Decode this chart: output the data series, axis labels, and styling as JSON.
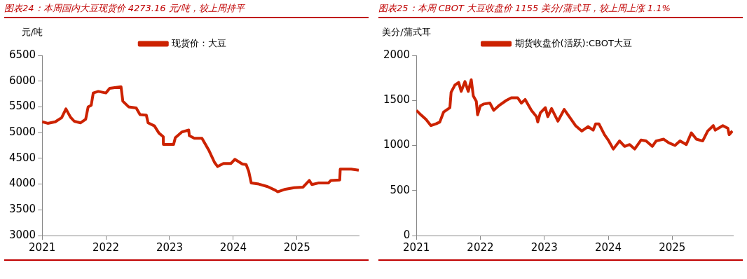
{
  "chart_data": [
    {
      "type": "line",
      "title": "图表24：本周国内大豆现货价 4273.16 元/吨，较上周持平",
      "ylabel": "元/吨",
      "legend": "top",
      "grid": false,
      "xlim": [
        2021,
        2025.97
      ],
      "xticks": [
        2021,
        2022,
        2023,
        2024,
        2025
      ],
      "ylim": [
        3000,
        6500
      ],
      "yticks": [
        3000,
        3500,
        4000,
        4500,
        5000,
        5500,
        6000,
        6500
      ],
      "series": [
        {
          "name": "现货价：大豆",
          "color": "#cc2200",
          "x": [
            2021.0,
            2021.087,
            2021.206,
            2021.306,
            2021.373,
            2021.444,
            2021.504,
            2021.603,
            2021.683,
            2021.722,
            2021.77,
            2021.802,
            2021.881,
            2022.0,
            2022.06,
            2022.238,
            2022.266,
            2022.357,
            2022.476,
            2022.536,
            2022.635,
            2022.663,
            2022.762,
            2022.833,
            2022.901,
            2022.903,
            2023.063,
            2023.09,
            2023.19,
            2023.3,
            2023.31,
            2023.389,
            2023.508,
            2023.619,
            2023.706,
            2023.754,
            2023.845,
            2023.964,
            2024.024,
            2024.143,
            2024.202,
            2024.242,
            2024.282,
            2024.401,
            2024.54,
            2024.659,
            2024.698,
            2024.817,
            2024.956,
            2025.095,
            2025.155,
            2025.194,
            2025.234,
            2025.333,
            2025.492,
            2025.532,
            2025.671,
            2025.679,
            2025.77,
            2025.85,
            2025.97
          ],
          "values": [
            5210,
            5180,
            5210,
            5290,
            5460,
            5300,
            5220,
            5190,
            5260,
            5500,
            5530,
            5770,
            5800,
            5770,
            5860,
            5890,
            5610,
            5500,
            5480,
            5350,
            5340,
            5190,
            5130,
            4990,
            4920,
            4770,
            4770,
            4900,
            5010,
            5050,
            4940,
            4890,
            4890,
            4650,
            4420,
            4340,
            4400,
            4400,
            4480,
            4390,
            4380,
            4250,
            4020,
            4000,
            3950,
            3880,
            3850,
            3900,
            3930,
            3940,
            4020,
            4070,
            3990,
            4020,
            4020,
            4070,
            4080,
            4290,
            4290,
            4290,
            4270
          ]
        }
      ]
    },
    {
      "type": "line",
      "title": "图表25：本周 CBOT 大豆收盘价 1155 美分/蒲式耳，较上周上涨 1.1%",
      "ylabel": "美分/蒲式耳",
      "legend": "top",
      "grid": false,
      "xlim": [
        2021,
        2025.95
      ],
      "xticks": [
        2021,
        2022,
        2023,
        2024,
        2025
      ],
      "ylim": [
        0,
        2000
      ],
      "yticks": [
        0,
        500,
        1000,
        1500,
        2000
      ],
      "series": [
        {
          "name": "期货收盘价(活跃):CBOT大豆",
          "color": "#cc2200",
          "x": [
            2021.0,
            2021.071,
            2021.15,
            2021.228,
            2021.307,
            2021.366,
            2021.425,
            2021.524,
            2021.543,
            2021.602,
            2021.661,
            2021.701,
            2021.76,
            2021.811,
            2021.858,
            2021.89,
            2021.937,
            2021.957,
            2022.0,
            2022.051,
            2022.15,
            2022.209,
            2022.287,
            2022.406,
            2022.484,
            2022.583,
            2022.642,
            2022.701,
            2022.799,
            2022.878,
            2022.898,
            2022.937,
            2023.016,
            2023.055,
            2023.114,
            2023.213,
            2023.311,
            2023.39,
            2023.488,
            2023.587,
            2023.685,
            2023.764,
            2023.803,
            2023.854,
            2023.941,
            2024.0,
            2024.079,
            2024.177,
            2024.256,
            2024.335,
            2024.413,
            2024.512,
            2024.591,
            2024.689,
            2024.748,
            2024.866,
            2024.945,
            2025.043,
            2025.122,
            2025.22,
            2025.299,
            2025.378,
            2025.476,
            2025.555,
            2025.642,
            2025.673,
            2025.791,
            2025.87,
            2025.89,
            2025.94
          ],
          "values": [
            1390,
            1340,
            1290,
            1220,
            1240,
            1260,
            1370,
            1420,
            1590,
            1670,
            1700,
            1600,
            1710,
            1600,
            1730,
            1550,
            1490,
            1340,
            1440,
            1460,
            1470,
            1390,
            1440,
            1500,
            1530,
            1530,
            1470,
            1510,
            1390,
            1320,
            1260,
            1360,
            1420,
            1320,
            1410,
            1270,
            1400,
            1320,
            1220,
            1160,
            1210,
            1170,
            1240,
            1240,
            1120,
            1060,
            960,
            1050,
            990,
            1010,
            960,
            1060,
            1050,
            990,
            1050,
            1070,
            1030,
            1000,
            1050,
            1010,
            1140,
            1070,
            1050,
            1160,
            1220,
            1170,
            1220,
            1190,
            1120,
            1160
          ]
        }
      ]
    }
  ]
}
